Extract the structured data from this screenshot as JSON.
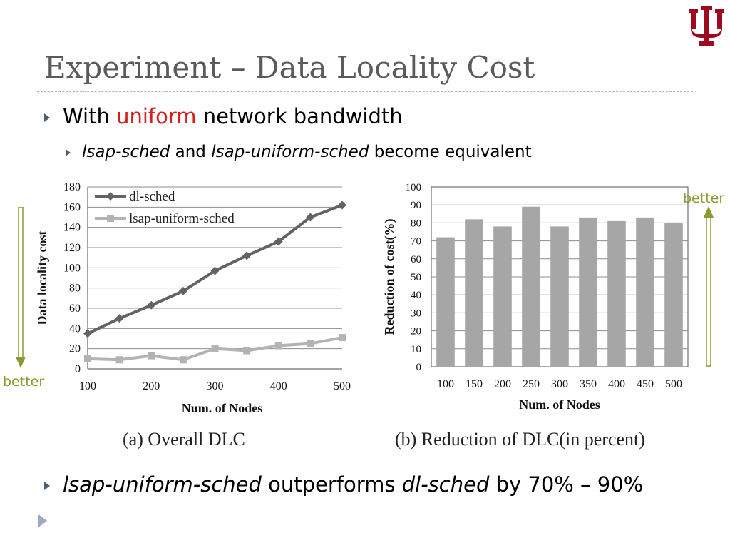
{
  "slide": {
    "title": "Experiment – Data Locality Cost",
    "bullet1": {
      "pre": "With ",
      "accent": "uniform",
      "post": " network bandwidth"
    },
    "bullet2": {
      "part1": "lsap-sched",
      "part2": " and ",
      "part3": "lsap-uniform-sched",
      "part4": " become equivalent"
    },
    "bullet3": {
      "part1": "lsap-uniform-sched",
      "part2": " outperforms ",
      "part3": "dl-sched",
      "part4": " by 70% – 90%"
    },
    "better_left": "better",
    "better_right": "better",
    "colors": {
      "accent": "#d41f1f",
      "better": "#8a9a2c",
      "title": "#5b5b5b",
      "logo": "#9d0a1f"
    },
    "logo_icon": "iu-trident-logo"
  },
  "chart_data": [
    {
      "type": "line",
      "caption": "(a) Overall DLC",
      "xlabel": "Num. of Nodes",
      "ylabel": "Data locality  cost",
      "xlim": [
        100,
        500
      ],
      "ylim": [
        0,
        180
      ],
      "xticks": [
        100,
        200,
        300,
        400,
        500
      ],
      "yticks": [
        0,
        20,
        40,
        60,
        80,
        100,
        120,
        140,
        160,
        180
      ],
      "grid": true,
      "legend": "top-left",
      "x": [
        100,
        150,
        200,
        250,
        300,
        350,
        400,
        450,
        500
      ],
      "series": [
        {
          "name": "dl-sched",
          "color": "#636363",
          "marker": "diamond",
          "values": [
            35,
            50,
            63,
            77,
            97,
            112,
            126,
            150,
            162
          ]
        },
        {
          "name": "lsap-uniform-sched",
          "color": "#b3b3b3",
          "marker": "square",
          "values": [
            10,
            9,
            13,
            9,
            20,
            18,
            23,
            25,
            31
          ]
        }
      ]
    },
    {
      "type": "bar",
      "caption": "(b) Reduction of DLC(in percent)",
      "xlabel": "Num. of Nodes",
      "ylabel": "Reduction of cost(%)",
      "ylim": [
        0,
        100
      ],
      "yticks": [
        0,
        10,
        20,
        30,
        40,
        50,
        60,
        70,
        80,
        90,
        100
      ],
      "grid": true,
      "color": "#a6a6a6",
      "categories": [
        "100",
        "150",
        "200",
        "250",
        "300",
        "350",
        "400",
        "450",
        "500"
      ],
      "values": [
        72,
        82,
        78,
        89,
        78,
        83,
        81,
        83,
        80
      ]
    }
  ]
}
